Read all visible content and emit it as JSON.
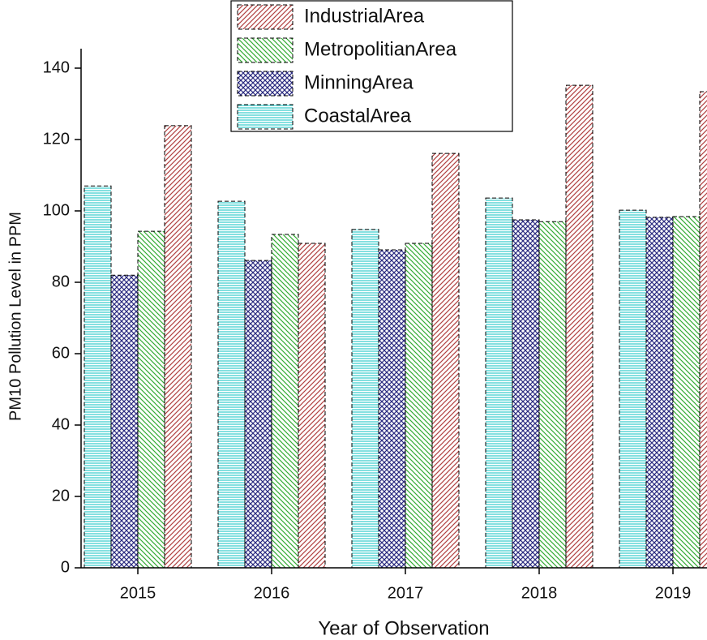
{
  "chart_data": {
    "type": "bar",
    "x_label": "Year of Observation",
    "y_label": "PM10 Pollution Level in PPM",
    "categories": [
      "2015",
      "2016",
      "2017",
      "2018",
      "2019"
    ],
    "series": [
      {
        "name": "CoastalArea",
        "color": "#33cccc",
        "values": [
          107,
          102.7,
          94.8,
          103.6,
          100.2
        ]
      },
      {
        "name": "MinningArea",
        "color": "#2a2a80",
        "values": [
          82,
          86.1,
          89.1,
          97.5,
          98.2
        ]
      },
      {
        "name": "MetropolitianArea",
        "color": "#33aa33",
        "values": [
          94.3,
          93.4,
          90.9,
          97,
          98.4
        ]
      },
      {
        "name": "IndustrialArea",
        "color": "#b04040",
        "values": [
          123.9,
          90.9,
          116.1,
          135.2,
          133.4
        ]
      }
    ],
    "ylim": [
      0,
      140
    ],
    "yticks": [
      0,
      20,
      40,
      60,
      80,
      100,
      120,
      140
    ]
  }
}
